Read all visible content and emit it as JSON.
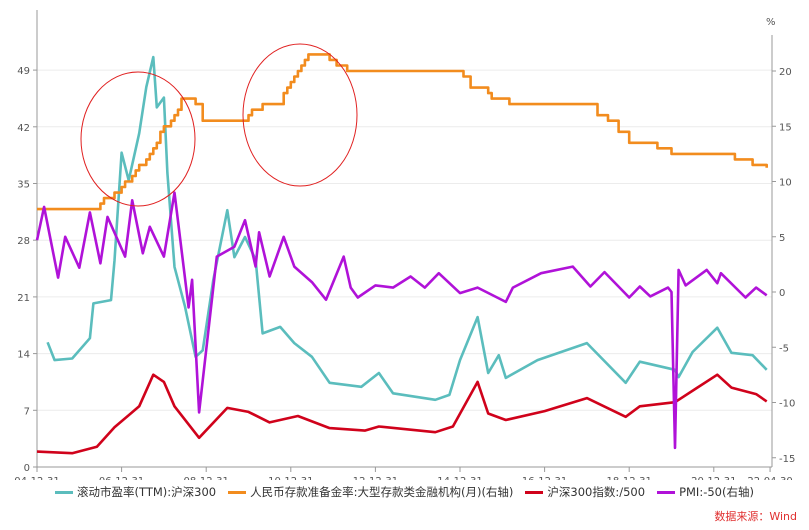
{
  "chart_data": {
    "type": "line",
    "title": "",
    "right_axis_unit": "%",
    "left_axis": {
      "ylim": [
        0,
        56
      ],
      "ticks": [
        0,
        7,
        14,
        21,
        28,
        35,
        42,
        49
      ]
    },
    "right_axis": {
      "ylim": [
        -16,
        22
      ],
      "ticks": [
        -15,
        -10,
        -5,
        0,
        5,
        10,
        15,
        20
      ]
    },
    "x_ticks": [
      "04-12-31",
      "06-12-31",
      "08-12-31",
      "10-12-31",
      "12-12-31",
      "14-12-31",
      "16-12-31",
      "18-12-31",
      "20-12-31",
      "22-04-30"
    ],
    "grid": true,
    "legend_placement": "bottom",
    "series": [
      {
        "name": "滚动市盈率(TTM):沪深300",
        "axis": "left",
        "color": "#5bbdbd",
        "style": "line",
        "points": [
          [
            "2005-04",
            15.4
          ],
          [
            "2005-06",
            13.2
          ],
          [
            "2005-11",
            13.4
          ],
          [
            "2006-04",
            15.9
          ],
          [
            "2006-05",
            20.2
          ],
          [
            "2006-10",
            20.6
          ],
          [
            "2006-11",
            25.5
          ],
          [
            "2007-01",
            38.8
          ],
          [
            "2007-03",
            35.4
          ],
          [
            "2007-06",
            41.2
          ],
          [
            "2007-08",
            46.9
          ],
          [
            "2007-10",
            50.6
          ],
          [
            "2007-11",
            44.4
          ],
          [
            "2008-01",
            45.6
          ],
          [
            "2008-02",
            36.3
          ],
          [
            "2008-04",
            24.7
          ],
          [
            "2008-07",
            19.8
          ],
          [
            "2008-10",
            13.6
          ],
          [
            "2008-12",
            14.4
          ],
          [
            "2009-03",
            23.1
          ],
          [
            "2009-07",
            31.7
          ],
          [
            "2009-09",
            25.9
          ],
          [
            "2009-12",
            28.4
          ],
          [
            "2010-03",
            25.6
          ],
          [
            "2010-05",
            16.5
          ],
          [
            "2010-10",
            17.3
          ],
          [
            "2011-02",
            15.3
          ],
          [
            "2011-07",
            13.6
          ],
          [
            "2011-12",
            10.4
          ],
          [
            "2012-09",
            9.9
          ],
          [
            "2013-02",
            11.6
          ],
          [
            "2013-06",
            9.1
          ],
          [
            "2014-06",
            8.3
          ],
          [
            "2014-10",
            8.9
          ],
          [
            "2015-01",
            13.2
          ],
          [
            "2015-06",
            18.5
          ],
          [
            "2015-09",
            11.6
          ],
          [
            "2015-12",
            13.8
          ],
          [
            "2016-02",
            11.0
          ],
          [
            "2016-11",
            13.2
          ],
          [
            "2018-01",
            15.3
          ],
          [
            "2018-12",
            10.4
          ],
          [
            "2019-04",
            13.0
          ],
          [
            "2020-02",
            12.0
          ],
          [
            "2020-03",
            11.1
          ],
          [
            "2020-07",
            14.2
          ],
          [
            "2021-02",
            17.2
          ],
          [
            "2021-06",
            14.1
          ],
          [
            "2021-12",
            13.8
          ],
          [
            "2022-04",
            12.0
          ]
        ]
      },
      {
        "name": "人民币存款准备金率:大型存款类金融机构(月)(右轴)",
        "axis": "right",
        "color": "#f28c1e",
        "style": "step",
        "points": [
          [
            "2005-01",
            7.5
          ],
          [
            "2006-07",
            8
          ],
          [
            "2006-08",
            8.5
          ],
          [
            "2006-11",
            9
          ],
          [
            "2007-01",
            9.5
          ],
          [
            "2007-02",
            10
          ],
          [
            "2007-04",
            10.5
          ],
          [
            "2007-05",
            11
          ],
          [
            "2007-06",
            11.5
          ],
          [
            "2007-08",
            12
          ],
          [
            "2007-09",
            12.5
          ],
          [
            "2007-10",
            13
          ],
          [
            "2007-11",
            13.5
          ],
          [
            "2007-12",
            14.5
          ],
          [
            "2008-01",
            15
          ],
          [
            "2008-03",
            15.5
          ],
          [
            "2008-04",
            16
          ],
          [
            "2008-05",
            16.5
          ],
          [
            "2008-06",
            17.5
          ],
          [
            "2008-10",
            17
          ],
          [
            "2008-12",
            15.5
          ],
          [
            "2010-01",
            16
          ],
          [
            "2010-02",
            16.5
          ],
          [
            "2010-05",
            17
          ],
          [
            "2010-11",
            18
          ],
          [
            "2010-12",
            18.5
          ],
          [
            "2011-01",
            19
          ],
          [
            "2011-02",
            19.5
          ],
          [
            "2011-03",
            20
          ],
          [
            "2011-04",
            20.5
          ],
          [
            "2011-05",
            21
          ],
          [
            "2011-06",
            21.5
          ],
          [
            "2011-12",
            21
          ],
          [
            "2012-02",
            20.5
          ],
          [
            "2012-05",
            20
          ],
          [
            "2015-02",
            19.5
          ],
          [
            "2015-04",
            18.5
          ],
          [
            "2015-09",
            18
          ],
          [
            "2015-10",
            17.5
          ],
          [
            "2016-03",
            17
          ],
          [
            "2018-04",
            16
          ],
          [
            "2018-07",
            15.5
          ],
          [
            "2018-10",
            14.5
          ],
          [
            "2019-01",
            13.5
          ],
          [
            "2019-09",
            13
          ],
          [
            "2020-01",
            12.5
          ],
          [
            "2021-07",
            12
          ],
          [
            "2021-12",
            11.5
          ],
          [
            "2022-04",
            11.25
          ]
        ]
      },
      {
        "name": "沪深300指数:/500",
        "axis": "left",
        "color": "#d0021b",
        "style": "line",
        "points": [
          [
            "2005-01",
            1.9
          ],
          [
            "2005-11",
            1.7
          ],
          [
            "2006-06",
            2.5
          ],
          [
            "2006-11",
            4.9
          ],
          [
            "2007-06",
            7.5
          ],
          [
            "2007-10",
            11.4
          ],
          [
            "2008-01",
            10.5
          ],
          [
            "2008-04",
            7.5
          ],
          [
            "2008-11",
            3.6
          ],
          [
            "2009-07",
            7.3
          ],
          [
            "2010-01",
            6.8
          ],
          [
            "2010-07",
            5.5
          ],
          [
            "2011-03",
            6.3
          ],
          [
            "2011-12",
            4.8
          ],
          [
            "2012-10",
            4.5
          ],
          [
            "2013-02",
            5.0
          ],
          [
            "2014-06",
            4.3
          ],
          [
            "2014-11",
            5.0
          ],
          [
            "2015-06",
            10.5
          ],
          [
            "2015-09",
            6.6
          ],
          [
            "2016-02",
            5.8
          ],
          [
            "2017-01",
            6.9
          ],
          [
            "2018-01",
            8.5
          ],
          [
            "2018-12",
            6.2
          ],
          [
            "2019-04",
            7.5
          ],
          [
            "2020-02",
            8.0
          ],
          [
            "2020-08",
            9.7
          ],
          [
            "2021-02",
            11.4
          ],
          [
            "2021-06",
            9.8
          ],
          [
            "2022-01",
            9.0
          ],
          [
            "2022-04",
            8.1
          ]
        ]
      },
      {
        "name": "PMI:-50(右轴)",
        "axis": "right",
        "color": "#b012d8",
        "style": "line",
        "points": [
          [
            "2005-01",
            4.7
          ],
          [
            "2005-03",
            7.7
          ],
          [
            "2005-07",
            1.3
          ],
          [
            "2005-09",
            5.0
          ],
          [
            "2006-01",
            2.2
          ],
          [
            "2006-04",
            7.2
          ],
          [
            "2006-07",
            2.6
          ],
          [
            "2006-09",
            6.8
          ],
          [
            "2007-02",
            3.2
          ],
          [
            "2007-04",
            8.3
          ],
          [
            "2007-07",
            3.5
          ],
          [
            "2007-09",
            5.9
          ],
          [
            "2008-01",
            3.2
          ],
          [
            "2008-04",
            9.0
          ],
          [
            "2008-08",
            -1.4
          ],
          [
            "2008-09",
            1.1
          ],
          [
            "2008-11",
            -10.9
          ],
          [
            "2009-04",
            3.2
          ],
          [
            "2009-09",
            4.1
          ],
          [
            "2009-12",
            6.5
          ],
          [
            "2010-03",
            2.3
          ],
          [
            "2010-04",
            5.4
          ],
          [
            "2010-07",
            1.4
          ],
          [
            "2010-11",
            5.0
          ],
          [
            "2011-02",
            2.3
          ],
          [
            "2011-07",
            0.9
          ],
          [
            "2011-11",
            -0.7
          ],
          [
            "2012-04",
            3.2
          ],
          [
            "2012-06",
            0.4
          ],
          [
            "2012-08",
            -0.5
          ],
          [
            "2013-01",
            0.6
          ],
          [
            "2013-06",
            0.4
          ],
          [
            "2013-11",
            1.4
          ],
          [
            "2014-03",
            0.4
          ],
          [
            "2014-07",
            1.7
          ],
          [
            "2015-01",
            -0.1
          ],
          [
            "2015-06",
            0.4
          ],
          [
            "2016-02",
            -0.9
          ],
          [
            "2016-04",
            0.4
          ],
          [
            "2016-12",
            1.7
          ],
          [
            "2017-09",
            2.3
          ],
          [
            "2018-02",
            0.5
          ],
          [
            "2018-06",
            1.8
          ],
          [
            "2019-01",
            -0.5
          ],
          [
            "2019-04",
            0.5
          ],
          [
            "2019-07",
            -0.4
          ],
          [
            "2019-12",
            0.4
          ],
          [
            "2020-01",
            0.0
          ],
          [
            "2020-02",
            -14.1
          ],
          [
            "2020-03",
            2.0
          ],
          [
            "2020-05",
            0.6
          ],
          [
            "2020-11",
            2.0
          ],
          [
            "2021-02",
            0.8
          ],
          [
            "2021-03",
            1.7
          ],
          [
            "2021-10",
            -0.5
          ],
          [
            "2022-01",
            0.4
          ],
          [
            "2022-04",
            -0.3
          ]
        ]
      }
    ],
    "annotations": [
      {
        "shape": "ellipse",
        "color": "#e02020",
        "around": "2006-2008 PE peak and RRR rise"
      },
      {
        "shape": "ellipse",
        "color": "#e02020",
        "around": "2010-2011 RRR rise"
      }
    ]
  },
  "source": "数据来源：Wind"
}
